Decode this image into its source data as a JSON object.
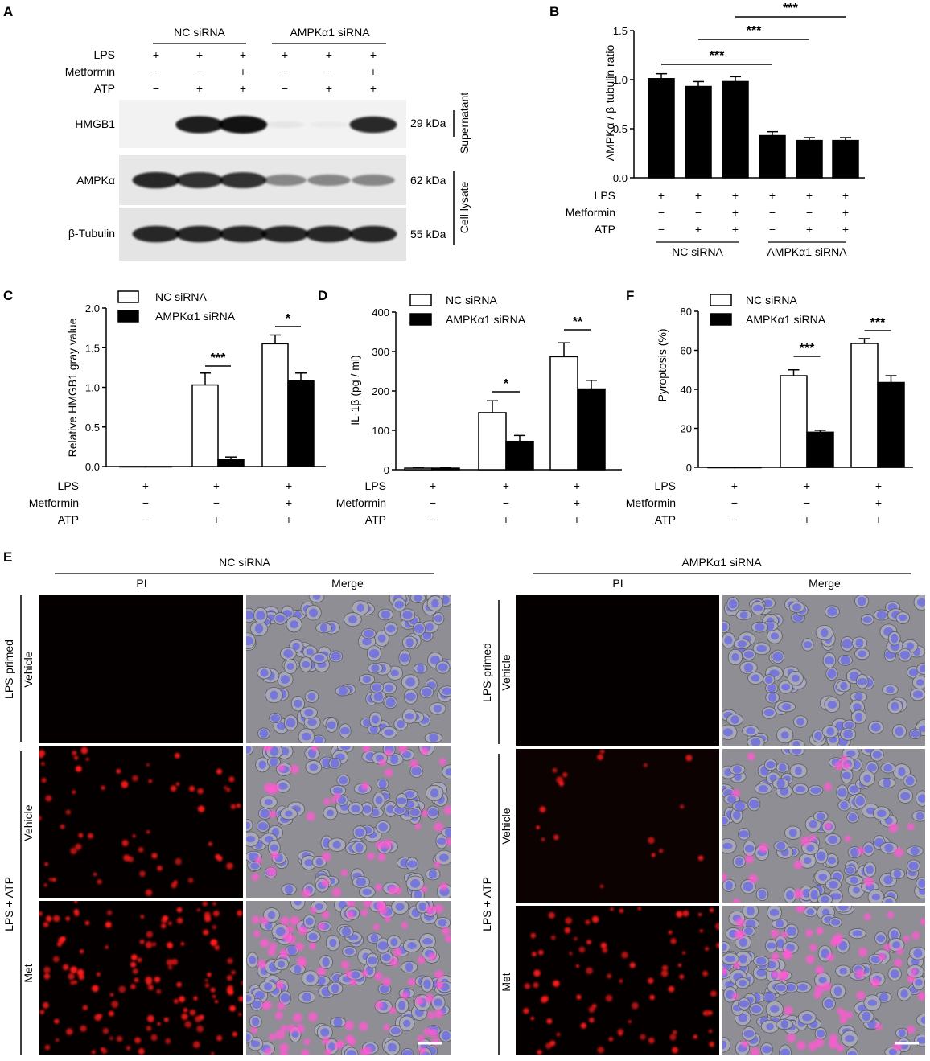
{
  "panel_letters": {
    "a": "A",
    "b": "B",
    "c": "C",
    "d": "D",
    "e": "E",
    "f": "F"
  },
  "groups": {
    "nc": "NC siRNA",
    "ampk": "AMPKα1 siRNA"
  },
  "row_labels": {
    "lps": "LPS",
    "metformin": "Metformin",
    "atp": "ATP"
  },
  "symbols": {
    "plus": "+",
    "minus": "−"
  },
  "treatments": {
    "lps": [
      "+",
      "+",
      "+",
      "+",
      "+",
      "+"
    ],
    "metformin": [
      "−",
      "−",
      "+",
      "−",
      "−",
      "+"
    ],
    "atp": [
      "−",
      "+",
      "+",
      "−",
      "+",
      "+"
    ]
  },
  "blot": {
    "bands": [
      {
        "name": "HMGB1",
        "kda": "29 kDa",
        "intensity": [
          0,
          0.95,
          1.0,
          0.05,
          0.03,
          0.9
        ]
      },
      {
        "name": "AMPKα",
        "kda": "62 kDa",
        "intensity": [
          0.9,
          0.85,
          0.85,
          0.45,
          0.45,
          0.45
        ]
      },
      {
        "name": "β-Tubulin",
        "kda": "55 kDa",
        "intensity": [
          0.9,
          0.9,
          0.9,
          0.9,
          0.9,
          0.9
        ]
      }
    ],
    "fractions": {
      "supernatant": "Supernatant",
      "lysate": "Cell lysate"
    }
  },
  "chart_data": [
    {
      "panel": "B",
      "type": "bar",
      "ylabel": "AMPKα / β-tubulin ratio",
      "ylim": [
        0,
        1.5
      ],
      "yticks": [
        "0.0",
        "0.5",
        "1.0",
        "1.5"
      ],
      "series": [
        {
          "values": [
            1.01,
            0.93,
            0.98,
            0.43,
            0.38,
            0.38
          ],
          "errors": [
            0.05,
            0.05,
            0.05,
            0.04,
            0.03,
            0.03
          ],
          "color": "#000000"
        }
      ],
      "significance": [
        {
          "from": 0,
          "to": 3,
          "label": "***"
        },
        {
          "from": 1,
          "to": 4,
          "label": "***"
        },
        {
          "from": 2,
          "to": 5,
          "label": "***"
        }
      ]
    },
    {
      "panel": "C",
      "type": "bar",
      "ylabel": "Relative HMGB1 gray value",
      "ylim": [
        0,
        2.0
      ],
      "yticks": [
        "0.0",
        "0.5",
        "1.0",
        "1.5",
        "2.0"
      ],
      "series": [
        {
          "name": "NC siRNA",
          "values": [
            0,
            1.03,
            1.55
          ],
          "errors": [
            0,
            0.15,
            0.11
          ],
          "color": "#ffffff"
        },
        {
          "name": "AMPKα1 siRNA",
          "values": [
            0,
            0.09,
            1.08
          ],
          "errors": [
            0,
            0.03,
            0.1
          ],
          "color": "#000000"
        }
      ],
      "significance": [
        {
          "group": 1,
          "label": "***"
        },
        {
          "group": 2,
          "label": "*"
        }
      ]
    },
    {
      "panel": "D",
      "type": "bar",
      "ylabel": "IL-1β (pg / ml)",
      "ylim": [
        0,
        400
      ],
      "yticks": [
        "0",
        "100",
        "200",
        "300",
        "400"
      ],
      "series": [
        {
          "name": "NC siRNA",
          "values": [
            4,
            145,
            287
          ],
          "errors": [
            1,
            30,
            35
          ],
          "color": "#ffffff"
        },
        {
          "name": "AMPKα1 siRNA",
          "values": [
            4,
            72,
            205
          ],
          "errors": [
            1,
            15,
            22
          ],
          "color": "#000000"
        }
      ],
      "significance": [
        {
          "group": 1,
          "label": "*"
        },
        {
          "group": 2,
          "label": "**"
        }
      ]
    },
    {
      "panel": "F",
      "type": "bar",
      "ylabel": "Pyroptosis (%)",
      "ylim": [
        0,
        80
      ],
      "yticks": [
        "0",
        "20",
        "40",
        "60",
        "80"
      ],
      "series": [
        {
          "name": "NC siRNA",
          "values": [
            0,
            47,
            63.5
          ],
          "errors": [
            0,
            3,
            2.5
          ],
          "color": "#ffffff"
        },
        {
          "name": "AMPKα1 siRNA",
          "values": [
            0,
            18,
            43.5
          ],
          "errors": [
            0,
            1,
            3.5
          ],
          "color": "#000000"
        }
      ],
      "significance": [
        {
          "group": 1,
          "label": "***"
        },
        {
          "group": 2,
          "label": "***"
        }
      ]
    }
  ],
  "micro": {
    "col_labels": {
      "pi": "PI",
      "merge": "Merge"
    },
    "row_groups": {
      "lps_primed": "LPS-primed",
      "lps_atp": "LPS + ATP"
    },
    "row_sub": {
      "vehicle": "Vehicle",
      "met": "Met"
    }
  }
}
